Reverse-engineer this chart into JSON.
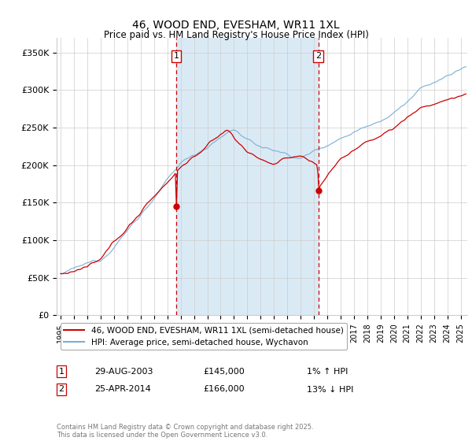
{
  "title": "46, WOOD END, EVESHAM, WR11 1XL",
  "subtitle": "Price paid vs. HM Land Registry's House Price Index (HPI)",
  "ylabel_ticks": [
    "£0",
    "£50K",
    "£100K",
    "£150K",
    "£200K",
    "£250K",
    "£300K",
    "£350K"
  ],
  "ylabel_values": [
    0,
    50000,
    100000,
    150000,
    200000,
    250000,
    300000,
    350000
  ],
  "ylim": [
    0,
    370000
  ],
  "xlim_start": 1994.7,
  "xlim_end": 2025.5,
  "marker1_x": 2003.66,
  "marker1_y": 145000,
  "marker2_x": 2014.32,
  "marker2_y": 166000,
  "legend_line1": "46, WOOD END, EVESHAM, WR11 1XL (semi-detached house)",
  "legend_line2": "HPI: Average price, semi-detached house, Wychavon",
  "footer": "Contains HM Land Registry data © Crown copyright and database right 2025.\nThis data is licensed under the Open Government Licence v3.0.",
  "table_row1": [
    "1",
    "29-AUG-2003",
    "£145,000",
    "1% ↑ HPI"
  ],
  "table_row2": [
    "2",
    "25-APR-2014",
    "£166,000",
    "13% ↓ HPI"
  ],
  "price_line_color": "#cc0000",
  "hpi_line_color": "#7ab0d4",
  "shade_color": "#daeaf5",
  "marker_color": "#cc0000",
  "vline_color": "#cc0000",
  "grid_color": "#cccccc",
  "bg_color": "#ffffff"
}
